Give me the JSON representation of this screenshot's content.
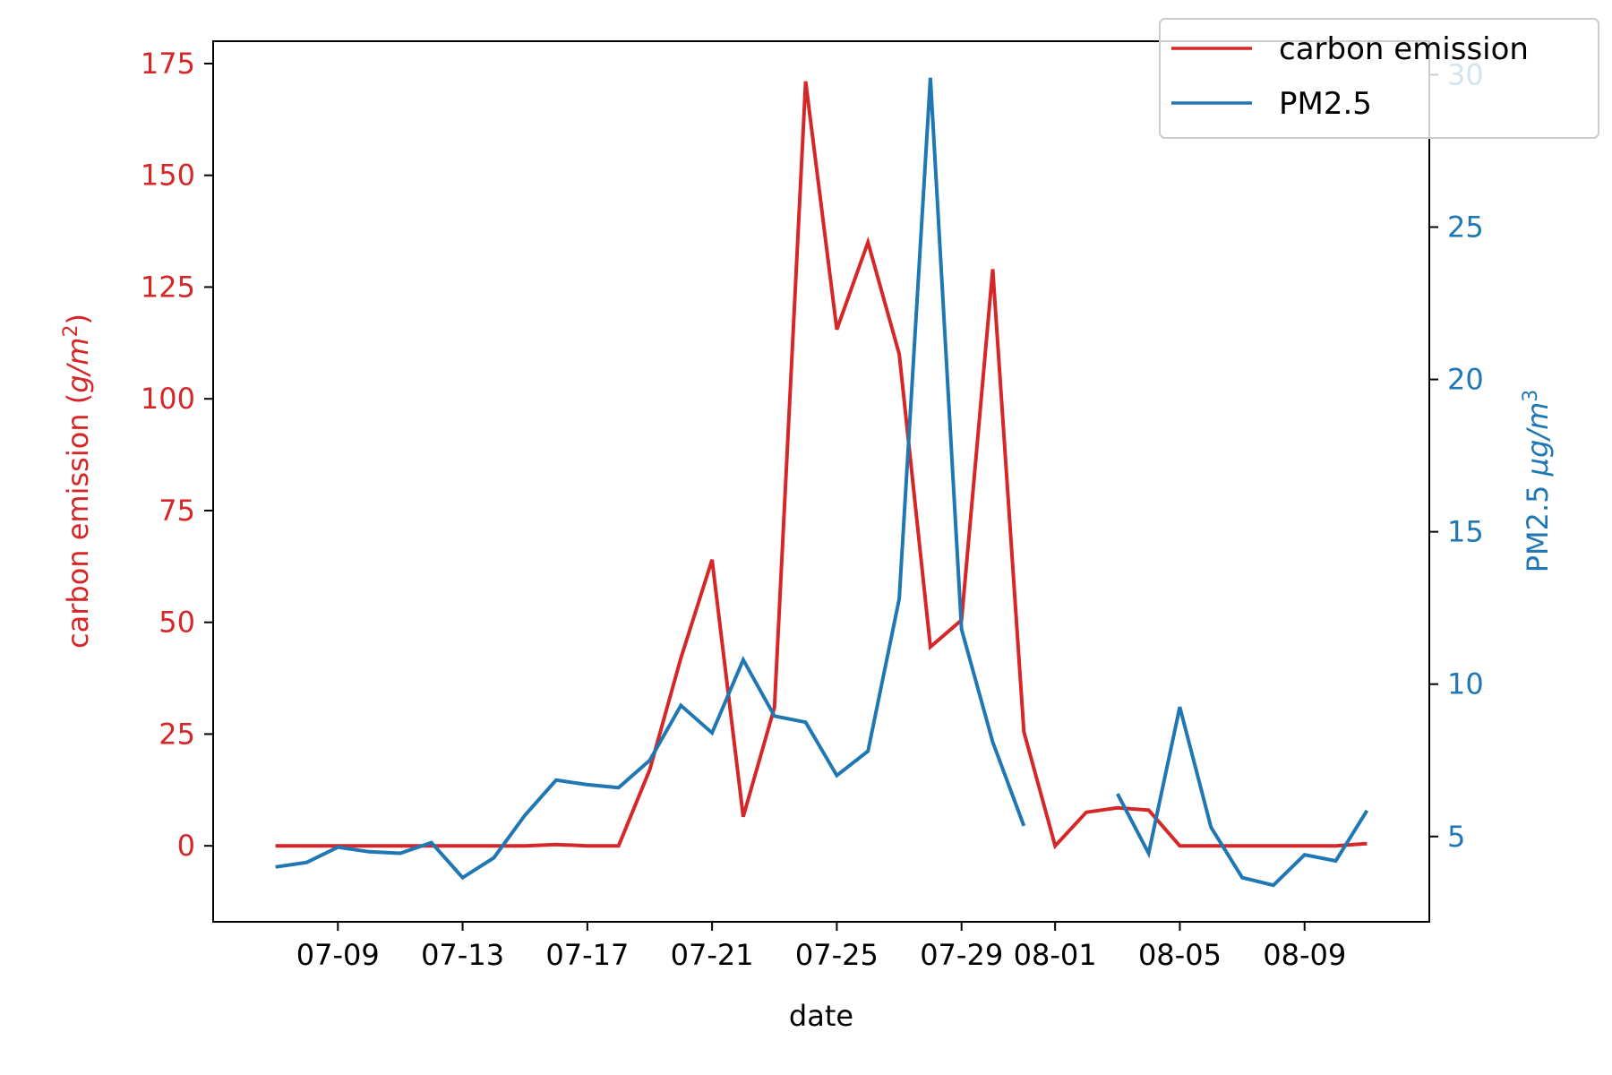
{
  "chart_data": {
    "type": "line",
    "xlabel": "date",
    "ylabel_left": "carbon emission (g/m²)",
    "ylabel_left_plain": "carbon emission (",
    "ylabel_left_math": "g/m",
    "ylabel_left_sup": "2",
    "ylabel_left_close": ")",
    "ylabel_right_plain": "PM2.5 ",
    "ylabel_right_math": "μg/m",
    "ylabel_right_sup": "3",
    "x_tick_labels": [
      "07-09",
      "07-13",
      "07-17",
      "07-21",
      "07-25",
      "07-29",
      "08-01",
      "08-05",
      "08-09"
    ],
    "x_tick_dates": [
      "2020-07-09",
      "2020-07-13",
      "2020-07-17",
      "2020-07-21",
      "2020-07-25",
      "2020-07-29",
      "2020-08-01",
      "2020-08-05",
      "2020-08-09"
    ],
    "x_range": [
      "2020-07-05",
      "2020-08-13"
    ],
    "y_left_range": [
      -17,
      180
    ],
    "y_left_ticks": [
      0,
      25,
      50,
      75,
      100,
      125,
      150,
      175
    ],
    "y_right_range": [
      2.2,
      31.1
    ],
    "y_right_ticks": [
      5,
      10,
      15,
      20,
      25,
      30
    ],
    "legend_position": "top-right",
    "grid": false,
    "series": [
      {
        "name": "carbon emission",
        "axis": "left",
        "color": "#d62728",
        "points": [
          [
            "2020-07-07",
            0
          ],
          [
            "2020-07-08",
            0
          ],
          [
            "2020-07-09",
            0
          ],
          [
            "2020-07-10",
            0
          ],
          [
            "2020-07-11",
            0
          ],
          [
            "2020-07-12",
            0
          ],
          [
            "2020-07-13",
            0
          ],
          [
            "2020-07-14",
            0
          ],
          [
            "2020-07-15",
            0
          ],
          [
            "2020-07-16",
            0.3
          ],
          [
            "2020-07-17",
            0
          ],
          [
            "2020-07-18",
            0
          ],
          [
            "2020-07-19",
            17
          ],
          [
            "2020-07-20",
            42
          ],
          [
            "2020-07-21",
            64
          ],
          [
            "2020-07-22",
            6.5
          ],
          [
            "2020-07-23",
            31
          ],
          [
            "2020-07-24",
            171
          ],
          [
            "2020-07-25",
            115.5
          ],
          [
            "2020-07-26",
            135
          ],
          [
            "2020-07-27",
            110
          ],
          [
            "2020-07-28",
            44.5
          ],
          [
            "2020-07-29",
            50.5
          ],
          [
            "2020-07-30",
            129
          ],
          [
            "2020-07-31",
            25.5
          ],
          [
            "2020-08-01",
            0
          ],
          [
            "2020-08-02",
            7.5
          ],
          [
            "2020-08-03",
            8.5
          ],
          [
            "2020-08-04",
            8
          ],
          [
            "2020-08-05",
            0
          ],
          [
            "2020-08-06",
            0
          ],
          [
            "2020-08-07",
            0
          ],
          [
            "2020-08-08",
            0
          ],
          [
            "2020-08-09",
            0
          ],
          [
            "2020-08-10",
            0
          ],
          [
            "2020-08-11",
            0.5
          ]
        ]
      },
      {
        "name": "PM2.5",
        "axis": "right",
        "color": "#1f77b4",
        "points": [
          [
            "2020-07-07",
            4.0
          ],
          [
            "2020-07-08",
            4.15
          ],
          [
            "2020-07-09",
            4.65
          ],
          [
            "2020-07-10",
            4.5
          ],
          [
            "2020-07-11",
            4.45
          ],
          [
            "2020-07-12",
            4.8
          ],
          [
            "2020-07-13",
            3.65
          ],
          [
            "2020-07-14",
            4.3
          ],
          [
            "2020-07-15",
            5.7
          ],
          [
            "2020-07-16",
            6.85
          ],
          [
            "2020-07-17",
            6.7
          ],
          [
            "2020-07-18",
            6.6
          ],
          [
            "2020-07-19",
            7.5
          ],
          [
            "2020-07-20",
            9.3
          ],
          [
            "2020-07-21",
            8.4
          ],
          [
            "2020-07-22",
            10.8
          ],
          [
            "2020-07-23",
            8.95
          ],
          [
            "2020-07-24",
            8.75
          ],
          [
            "2020-07-25",
            7.0
          ],
          [
            "2020-07-26",
            7.8
          ],
          [
            "2020-07-27",
            12.8
          ],
          [
            "2020-07-28",
            29.9
          ],
          [
            "2020-07-29",
            11.8
          ],
          [
            "2020-07-30",
            8.1
          ],
          [
            "2020-07-31",
            5.35
          ],
          [
            "2020-08-01",
            null
          ],
          [
            "2020-08-02",
            null
          ],
          [
            "2020-08-03",
            6.4
          ],
          [
            "2020-08-04",
            4.45
          ],
          [
            "2020-08-05",
            9.25
          ],
          [
            "2020-08-06",
            5.3
          ],
          [
            "2020-08-07",
            3.65
          ],
          [
            "2020-08-08",
            3.4
          ],
          [
            "2020-08-09",
            4.4
          ],
          [
            "2020-08-10",
            4.2
          ],
          [
            "2020-08-11",
            5.85
          ]
        ]
      }
    ]
  }
}
